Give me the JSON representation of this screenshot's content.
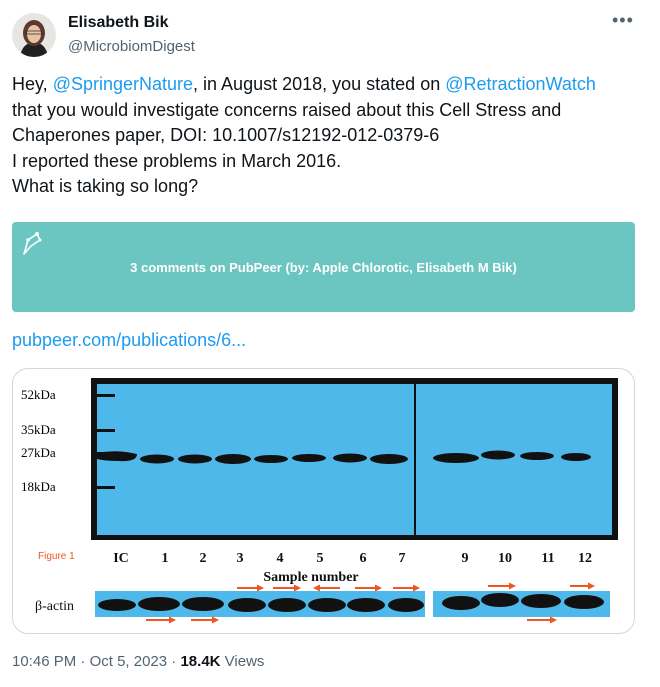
{
  "author": {
    "name": "Elisabeth Bik",
    "handle": "@MicrobiomDigest"
  },
  "more_icon": "more-horizontal-icon",
  "tweet": {
    "line1": {
      "pre": "Hey, ",
      "mention1": "@SpringerNature",
      "mid": ", in August 2018, you stated on ",
      "mention2": "@RetractionWatch"
    },
    "line2": "that you would investigate concerns raised about this Cell Stress and",
    "line3": "Chaperones paper, DOI: 10.1007/s12192-012-0379-6",
    "line4": "I reported these problems in March 2016.",
    "line5": "What is taking so long?"
  },
  "card": {
    "title": "3 comments on PubPeer (by: Apple Chlorotic, Elisabeth M Bik)",
    "icon": "pubpeer-logo-icon",
    "bg_color": "#6bc6c1"
  },
  "link": "pubpeer.com/publications/6...",
  "figure": {
    "markers": [
      "52kDa",
      "35kDa",
      "27kDa",
      "18kDa"
    ],
    "figure_label": "Figure 1",
    "lanes": [
      "IC",
      "1",
      "2",
      "3",
      "4",
      "5",
      "6",
      "7",
      "9",
      "10",
      "11",
      "12"
    ],
    "sample_label": "Sample number",
    "actin_label": "β-actin",
    "blot_color": "#4fb8ea",
    "arrow_color": "#f0561f"
  },
  "footer": {
    "time": "10:46 PM",
    "sep": " · ",
    "date": "Oct 5, 2023",
    "views_count": "18.4K",
    "views_label": "Views"
  }
}
